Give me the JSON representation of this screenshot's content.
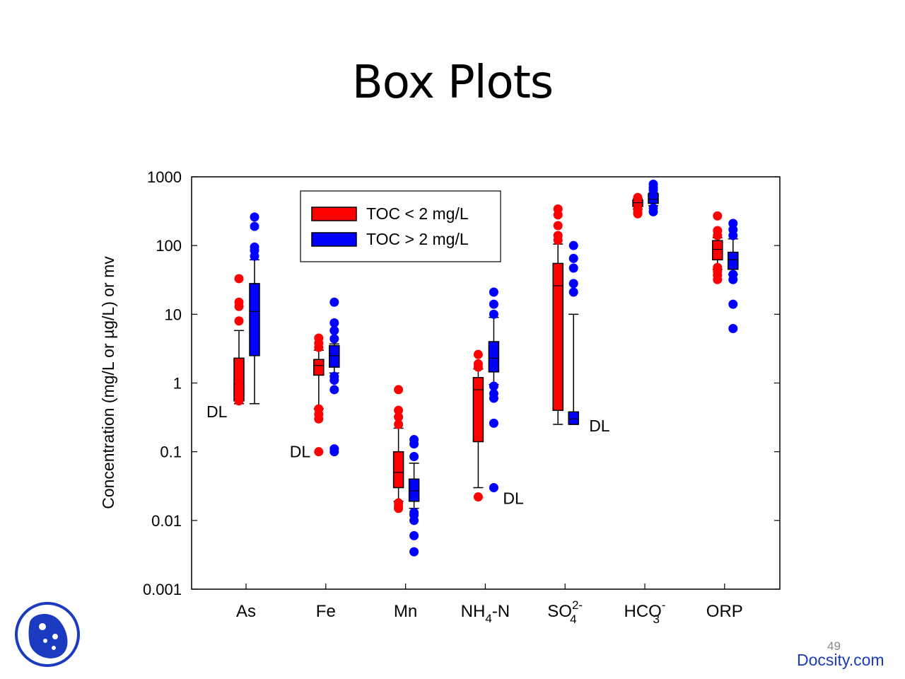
{
  "title": "Box Plots",
  "page_number": "49",
  "brand": "Docsity.com",
  "colors": {
    "low_toc": "#ff0000",
    "high_toc": "#0000ff",
    "logo": "#1a3bbf"
  },
  "chart_data": {
    "type": "box",
    "title": "",
    "ylabel": "Concentration (mg/L or µg/L) or mv",
    "yscale": "log",
    "ylim": [
      0.001,
      1000
    ],
    "ytick_labels": [
      "1000",
      "100",
      "10",
      "1",
      "0.1",
      "0.01",
      "0.001"
    ],
    "categories": [
      "As",
      "Fe",
      "Mn",
      "NH4-N",
      "SO42-",
      "HCO3-",
      "ORP"
    ],
    "category_labels": [
      {
        "base": "As"
      },
      {
        "base": "Fe"
      },
      {
        "base": "Mn"
      },
      {
        "base": "NH",
        "sub": "4",
        "tail": "-N"
      },
      {
        "base": "SO",
        "sub": "4",
        "sup": "2-"
      },
      {
        "base": "HCO",
        "sub": "3",
        "sup": "-"
      },
      {
        "base": "ORP"
      }
    ],
    "legend": {
      "position": "top-left",
      "entries": [
        "TOC < 2 mg/L",
        "TOC > 2 mg/L"
      ]
    },
    "series": [
      {
        "name": "TOC < 2 mg/L",
        "color": "#ff0000",
        "boxes": [
          {
            "category": "As",
            "whisker_low": 0.5,
            "q1": 0.55,
            "median": 0.95,
            "q3": 2.3,
            "whisker_high": 5.8,
            "outliers": [
              8,
              13,
              15,
              33,
              0.55,
              0.62,
              0.68,
              0.78,
              0.88
            ]
          },
          {
            "category": "Fe",
            "whisker_low": 0.42,
            "q1": 1.3,
            "median": 1.8,
            "q3": 2.2,
            "whisker_high": 3.0,
            "outliers": [
              0.1,
              0.3,
              0.35,
              0.42,
              3.3,
              3.8,
              4.5
            ]
          },
          {
            "category": "Mn",
            "whisker_low": 0.019,
            "q1": 0.03,
            "median": 0.05,
            "q3": 0.1,
            "whisker_high": 0.22,
            "outliers": [
              0.015,
              0.016,
              0.018,
              0.25,
              0.32,
              0.4,
              0.8
            ]
          },
          {
            "category": "NH4-N",
            "whisker_low": 0.03,
            "q1": 0.14,
            "median": 0.8,
            "q3": 1.2,
            "whisker_high": 1.6,
            "outliers": [
              0.022,
              1.7,
              1.9,
              2.6
            ]
          },
          {
            "category": "SO42-",
            "whisker_low": 0.25,
            "q1": 0.4,
            "median": 26,
            "q3": 55,
            "whisker_high": 105,
            "outliers": [
              120,
              140,
              195,
              280,
              340
            ]
          },
          {
            "category": "HCO3-",
            "whisker_low": 340,
            "q1": 370,
            "median": 420,
            "q3": 460,
            "whisker_high": 480,
            "outliers": [
              290,
              310,
              340,
              500
            ]
          },
          {
            "category": "ORP",
            "whisker_low": 45,
            "q1": 62,
            "median": 88,
            "q3": 118,
            "whisker_high": 130,
            "outliers": [
              32,
              37,
              42,
              48,
              140,
              165,
              270
            ]
          }
        ]
      },
      {
        "name": "TOC > 2 mg/L",
        "color": "#0000ff",
        "boxes": [
          {
            "category": "As",
            "whisker_low": 0.5,
            "q1": 2.5,
            "median": 11,
            "q3": 28,
            "whisker_high": 62,
            "outliers": [
              70,
              85,
              95,
              190,
              260
            ]
          },
          {
            "category": "Fe",
            "whisker_low": 1.4,
            "q1": 1.7,
            "median": 2.5,
            "q3": 3.5,
            "whisker_high": 3.7,
            "outliers": [
              0.1,
              0.11,
              0.8,
              1.1,
              1.25,
              4.4,
              5.8,
              7.5,
              15
            ]
          },
          {
            "category": "Mn",
            "whisker_low": 0.015,
            "q1": 0.019,
            "median": 0.027,
            "q3": 0.04,
            "whisker_high": 0.068,
            "outliers": [
              0.0035,
              0.006,
              0.01,
              0.012,
              0.013,
              0.085,
              0.13,
              0.15
            ]
          },
          {
            "category": "NH4-N",
            "whisker_low": 0.95,
            "q1": 1.45,
            "median": 2.3,
            "q3": 4.0,
            "whisker_high": 9,
            "outliers": [
              0.03,
              0.26,
              0.6,
              0.7,
              0.9,
              10,
              14,
              21
            ]
          },
          {
            "category": "SO42-",
            "whisker_low": 0.25,
            "q1": 0.25,
            "median": 0.3,
            "q3": 0.38,
            "whisker_high": 10,
            "outliers": [
              21,
              28,
              47,
              65,
              100
            ]
          },
          {
            "category": "HCO3-",
            "whisker_low": 380,
            "q1": 410,
            "median": 470,
            "q3": 570,
            "whisker_high": 580,
            "outliers": [
              310,
              350,
              640,
              700,
              780
            ]
          },
          {
            "category": "ORP",
            "whisker_low": 38,
            "q1": 45,
            "median": 62,
            "q3": 80,
            "whisker_high": 125,
            "outliers": [
              6.2,
              14,
              32,
              38,
              140,
              170,
              210
            ]
          }
        ]
      }
    ],
    "annotations": [
      {
        "text": "DL",
        "category": "As",
        "value": 0.4
      },
      {
        "text": "DL",
        "category": "Fe",
        "value": 0.1
      },
      {
        "text": "DL",
        "category": "NH4-N",
        "value": 0.022
      },
      {
        "text": "DL",
        "category": "SO42-",
        "value": 0.25
      }
    ]
  }
}
